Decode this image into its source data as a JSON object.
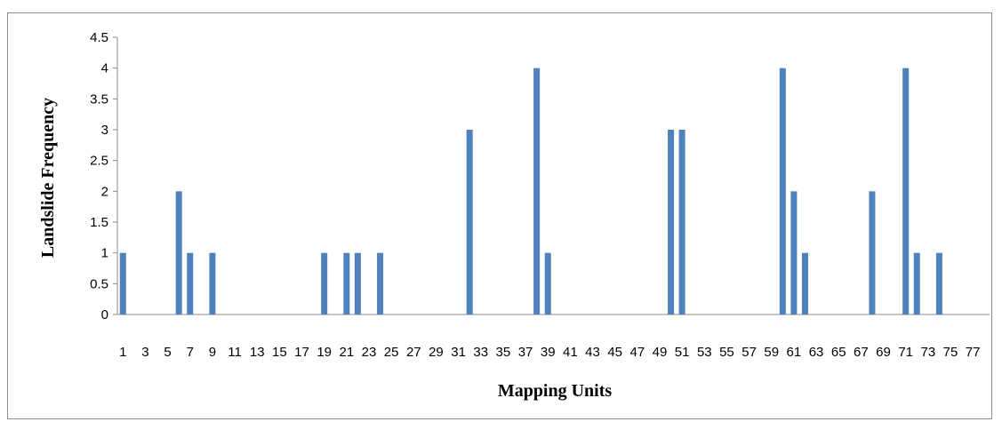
{
  "chart_data": {
    "type": "bar",
    "title": "",
    "xlabel": "Mapping Units",
    "ylabel": "Landslide Frequency",
    "ylim": [
      0,
      4.5
    ],
    "y_ticks": [
      "0",
      "0.5",
      "1",
      "1.5",
      "2",
      "2.5",
      "3",
      "3.5",
      "4",
      "4.5"
    ],
    "grid": false,
    "legend": "none",
    "bar_color": "#4f81bd",
    "categories": [
      1,
      2,
      3,
      4,
      5,
      6,
      7,
      8,
      9,
      10,
      11,
      12,
      13,
      14,
      15,
      16,
      17,
      18,
      19,
      20,
      21,
      22,
      23,
      24,
      25,
      26,
      27,
      28,
      29,
      30,
      31,
      32,
      33,
      34,
      35,
      36,
      37,
      38,
      39,
      40,
      41,
      42,
      43,
      44,
      45,
      46,
      47,
      48,
      49,
      50,
      51,
      52,
      53,
      54,
      55,
      56,
      57,
      58,
      59,
      60,
      61,
      62,
      63,
      64,
      65,
      66,
      67,
      68,
      69,
      70,
      71,
      72,
      73,
      74,
      75,
      76,
      77,
      78
    ],
    "x_tick_labels": [
      "1",
      "3",
      "5",
      "7",
      "9",
      "11",
      "13",
      "15",
      "17",
      "19",
      "21",
      "23",
      "25",
      "27",
      "29",
      "31",
      "33",
      "35",
      "37",
      "39",
      "41",
      "43",
      "45",
      "47",
      "49",
      "51",
      "53",
      "55",
      "57",
      "59",
      "61",
      "63",
      "65",
      "67",
      "69",
      "71",
      "73",
      "75",
      "77"
    ],
    "values": [
      1,
      0,
      0,
      0,
      0,
      2,
      1,
      0,
      1,
      0,
      0,
      0,
      0,
      0,
      0,
      0,
      0,
      0,
      1,
      0,
      1,
      1,
      0,
      1,
      0,
      0,
      0,
      0,
      0,
      0,
      0,
      3,
      0,
      0,
      0,
      0,
      0,
      4,
      1,
      0,
      0,
      0,
      0,
      0,
      0,
      0,
      0,
      0,
      0,
      3,
      3,
      0,
      0,
      0,
      0,
      0,
      0,
      0,
      0,
      4,
      2,
      1,
      0,
      0,
      0,
      0,
      0,
      2,
      0,
      0,
      4,
      1,
      0,
      1,
      0,
      0,
      0,
      0
    ]
  }
}
